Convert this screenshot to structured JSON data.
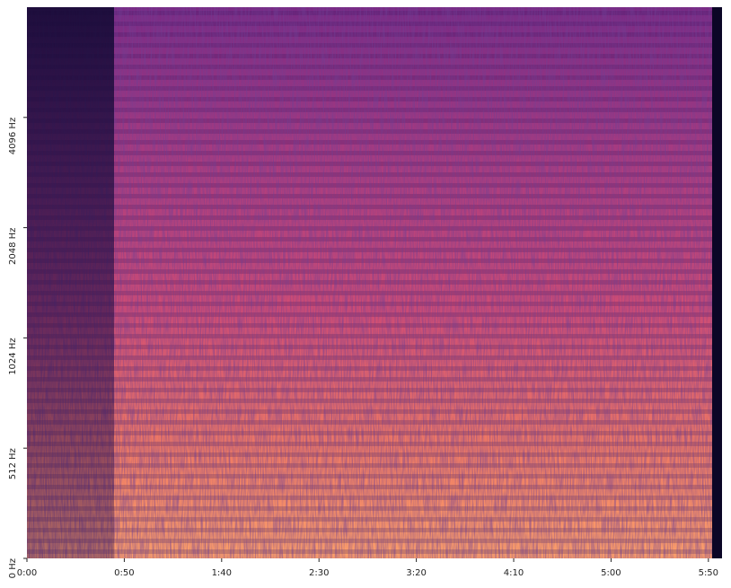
{
  "chart_data": {
    "type": "spectrogram",
    "xlim": [
      0,
      357
    ],
    "xticks": [
      {
        "value": 0,
        "label": "0:00"
      },
      {
        "value": 50,
        "label": "0:50"
      },
      {
        "value": 100,
        "label": "1:40"
      },
      {
        "value": 150,
        "label": "2:30"
      },
      {
        "value": 200,
        "label": "3:20"
      },
      {
        "value": 250,
        "label": "4:10"
      },
      {
        "value": 300,
        "label": "5:00"
      },
      {
        "value": 350,
        "label": "5:50"
      }
    ],
    "ylim": [
      0,
      8192
    ],
    "yscale": "symlog",
    "linthresh": 512,
    "yticks": [
      {
        "value": 0,
        "label": "0 Hz"
      },
      {
        "value": 512,
        "label": "512 Hz"
      },
      {
        "value": 1024,
        "label": "1024 Hz"
      },
      {
        "value": 2048,
        "label": "2048 Hz"
      },
      {
        "value": 4096,
        "label": "4096 Hz"
      }
    ]
  }
}
